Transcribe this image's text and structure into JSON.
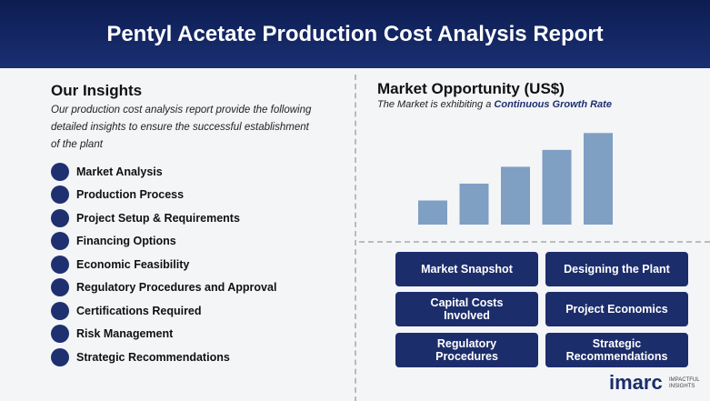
{
  "header": {
    "title": "Pentyl Acetate Production Cost Analysis Report"
  },
  "insights": {
    "heading": "Our Insights",
    "description": "Our production cost analysis report provide the following detailed insights to ensure the successful establishment of the plant",
    "items": [
      "Market Analysis",
      "Production Process",
      "Project Setup & Requirements",
      "Financing Options",
      "Economic Feasibility",
      "Regulatory Procedures and Approval",
      "Certifications Required",
      "Risk Management",
      "Strategic Recommendations"
    ]
  },
  "market": {
    "heading": "Market Opportunity (US$)",
    "subtitle_plain": "The Market is exhibiting a",
    "subtitle_bold": "Continuous Growth Rate"
  },
  "chart_data": {
    "type": "bar",
    "values": [
      1,
      1.7,
      2.4,
      3.1,
      3.8
    ],
    "color": "#7f9fc3"
  },
  "buttons": [
    "Market Snapshot",
    "Designing the Plant",
    "Capital Costs Involved",
    "Project Economics",
    "Regulatory Procedures",
    "Strategic Recommendations"
  ],
  "logo": {
    "name": "imarc",
    "tagline": "IMPACTFUL INSIGHTS"
  }
}
